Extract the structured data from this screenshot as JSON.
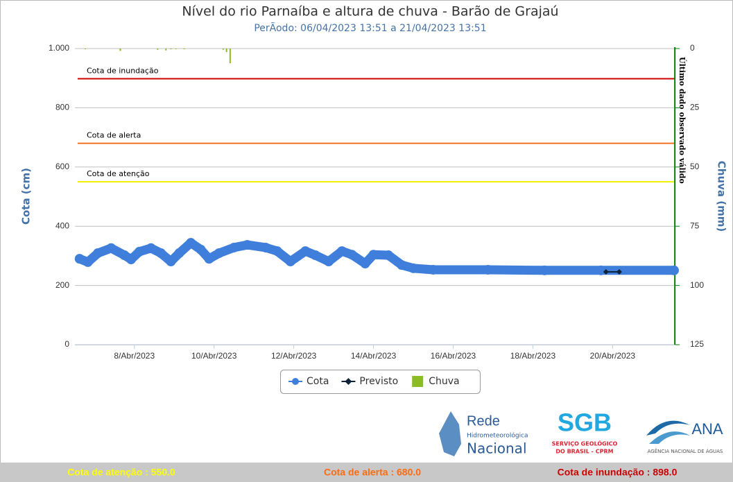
{
  "chart_data": {
    "type": "line",
    "title": "Nível do rio Parnaíba e altura de chuva - Barão de Grajaú",
    "subtitle": "PerÃodo: 06/04/2023 13:51 a 21/04/2023 13:51",
    "y_label": "Cota (cm)",
    "y2_label": "Chuva (mm)",
    "xlim": [
      "2023-04-06T13:51",
      "2023-04-21T13:51"
    ],
    "xticks": [
      {
        "value": "2023-04-08T00:00",
        "label": "8/Abr/2023"
      },
      {
        "value": "2023-04-10T00:00",
        "label": "10/Abr/2023"
      },
      {
        "value": "2023-04-12T00:00",
        "label": "12/Abr/2023"
      },
      {
        "value": "2023-04-14T00:00",
        "label": "14/Abr/2023"
      },
      {
        "value": "2023-04-16T00:00",
        "label": "16/Abr/2023"
      },
      {
        "value": "2023-04-18T00:00",
        "label": "18/Abr/2023"
      },
      {
        "value": "2023-04-20T00:00",
        "label": "20/Abr/2023"
      }
    ],
    "ylim": [
      0,
      1000
    ],
    "yticks": [
      0,
      200,
      400,
      600,
      800,
      {
        "value": 1000,
        "label": "1.000"
      }
    ],
    "y2lim": [
      0,
      125
    ],
    "y2_reversed": true,
    "y2ticks": [
      0,
      25,
      50,
      75,
      100,
      125
    ],
    "grid": true,
    "legend": "bottom",
    "series": [
      {
        "name": "Cota",
        "color": "#3f7fdb",
        "kind": "line",
        "x": [
          "2023-04-06T15:00",
          "2023-04-06T20:00",
          "2023-04-07T02:00",
          "2023-04-07T10:00",
          "2023-04-07T18:00",
          "2023-04-07T22:00",
          "2023-04-08T03:00",
          "2023-04-08T10:00",
          "2023-04-08T16:00",
          "2023-04-08T22:00",
          "2023-04-09T03:00",
          "2023-04-09T10:00",
          "2023-04-09T16:00",
          "2023-04-09T21:00",
          "2023-04-10T03:00",
          "2023-04-10T12:00",
          "2023-04-10T20:00",
          "2023-04-11T07:00",
          "2023-04-11T14:00",
          "2023-04-11T22:00",
          "2023-04-12T07:00",
          "2023-04-12T13:00",
          "2023-04-12T21:00",
          "2023-04-13T05:00",
          "2023-04-13T11:00",
          "2023-04-13T19:00",
          "2023-04-14T00:00",
          "2023-04-14T09:00",
          "2023-04-14T17:00",
          "2023-04-15T00:00",
          "2023-04-15T12:00",
          "2023-04-16T21:00",
          "2023-04-18T07:00",
          "2023-04-19T17:00",
          "2023-04-21T13:00"
        ],
        "values": [
          290,
          279,
          309,
          326,
          302,
          288,
          314,
          326,
          309,
          281,
          309,
          344,
          321,
          290,
          309,
          328,
          337,
          328,
          316,
          281,
          316,
          302,
          281,
          316,
          304,
          274,
          304,
          302,
          269,
          258,
          253,
          253,
          251,
          251,
          251
        ]
      },
      {
        "name": "Previsto",
        "color": "#0d233a",
        "kind": "line",
        "x": [
          "2023-04-19T20:00",
          "2023-04-20T04:00"
        ],
        "values": [
          246,
          246
        ]
      },
      {
        "name": "Chuva",
        "color": "#8bbc21",
        "kind": "bar",
        "axis": "y2",
        "x": [
          "2023-04-06T18:30",
          "2023-04-07T15:30",
          "2023-04-08T14:00",
          "2023-04-08T19:00",
          "2023-04-08T22:00",
          "2023-04-09T01:00",
          "2023-04-09T06:00",
          "2023-04-10T05:30",
          "2023-04-10T07:30",
          "2023-04-10T09:40"
        ],
        "values": [
          0.3,
          1.0,
          0.5,
          0.8,
          0.3,
          0.3,
          0.3,
          0.5,
          1.5,
          6.2
        ]
      }
    ],
    "plot_lines": [
      {
        "value": 898,
        "label": "Cota de inundação",
        "color": "#cc0000"
      },
      {
        "value": 680,
        "label": "Cota de alerta",
        "color": "#f07020"
      },
      {
        "value": 550,
        "label": "Cota de atenção",
        "color": "#f0f000"
      }
    ],
    "last_observed": {
      "x": "2023-04-21T13:30",
      "label": "Último dado observado válido",
      "color": "#008000"
    },
    "logos": {
      "rede": [
        "Rede",
        "Hidrometeorológica",
        "Nacional"
      ],
      "sgb": [
        "SGB",
        "SERVIÇO GEOLÓGICO",
        "DO BRASIL - CPRM"
      ],
      "ana": [
        "ANA",
        "AGÊNCIA NACIONAL DE ÁGUAS"
      ]
    },
    "footer": [
      {
        "text": "Cota de atenção : 550.0",
        "color": "#ffff00"
      },
      {
        "text": "Cota de alerta : 680.0",
        "color": "#ff6a10"
      },
      {
        "text": "Cota de inundação : 898.0",
        "color": "#cc0000"
      }
    ]
  }
}
